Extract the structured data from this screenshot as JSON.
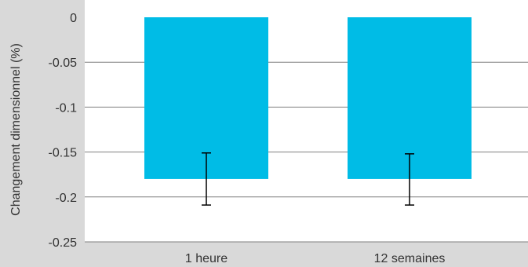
{
  "chart_data": {
    "type": "bar",
    "categories": [
      "1 heure",
      "12 semaines"
    ],
    "series": [
      {
        "values": [
          -0.18,
          -0.18
        ],
        "error_low": [
          -0.209,
          -0.209
        ],
        "error_high": [
          -0.151,
          -0.152
        ]
      }
    ],
    "title": "",
    "xlabel": "",
    "ylabel": "Changement dimensionnel (%)",
    "ylim": [
      -0.25,
      0
    ],
    "yticks": [
      0,
      -0.05,
      -0.1,
      -0.15,
      -0.2,
      -0.25
    ],
    "ytick_labels": [
      "0",
      "-0.05",
      "-0.1",
      "-0.15",
      "-0.2",
      "-0.25"
    ],
    "grid": true,
    "colors": {
      "bar": "#00bce6",
      "plot_background": "#ffffff",
      "figure_background": "#d9d9d9",
      "gridline": "#7f7f7f",
      "error_bar": "#000000"
    }
  }
}
